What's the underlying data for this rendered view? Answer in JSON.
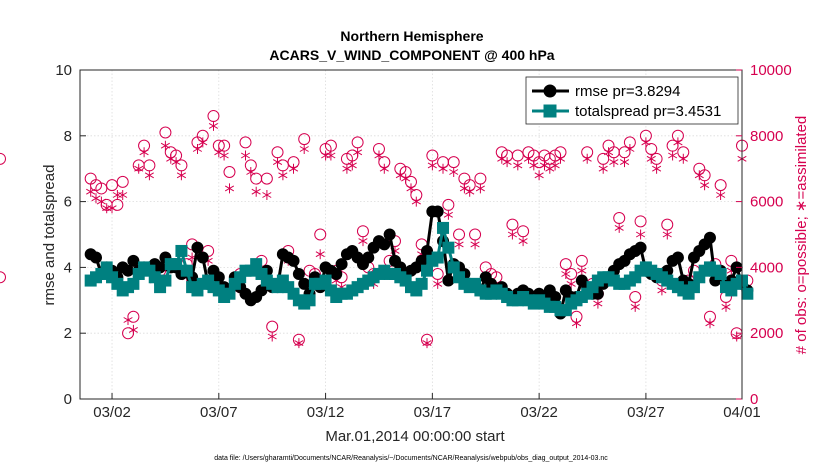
{
  "chart_data": {
    "type": "line",
    "title_line1": "Northern Hemisphere",
    "title_line2": "ACARS_V_WIND_COMPONENT @ 400 hPa",
    "ylabel": "rmse and totalspread",
    "y2label": "# of obs: o=possible; ∗=assimilated",
    "xlabel": "Mar.01,2014 00:00:00 start",
    "footnote": "data file: /Users/gharamti/Documents/NCAR/Reanalysis/~/Documents/NCAR/Reanalysis/webpub/obs_diag_output_2014-03.nc",
    "ylim": [
      0,
      10
    ],
    "y2lim": [
      0,
      10000
    ],
    "xlim": [
      0.5,
      31.5
    ],
    "yticks": [
      "0",
      "2",
      "4",
      "6",
      "8",
      "10"
    ],
    "y2ticks": [
      "0",
      "2000",
      "4000",
      "6000",
      "8000",
      "10000"
    ],
    "xticks": [
      {
        "x": 2,
        "label": "03/02"
      },
      {
        "x": 7,
        "label": "03/07"
      },
      {
        "x": 12,
        "label": "03/12"
      },
      {
        "x": 17,
        "label": "03/17"
      },
      {
        "x": 22,
        "label": "03/22"
      },
      {
        "x": 27,
        "label": "03/27"
      },
      {
        "x": 32,
        "label": "04/01"
      }
    ],
    "grid": true,
    "legend_position": "top-right",
    "series": [
      {
        "name": "rmse pr=3.8294",
        "color": "#000000",
        "marker": "circle",
        "values": [
          4.4,
          4.3,
          3.8,
          4.0,
          3.9,
          3.7,
          4.0,
          3.9,
          4.2,
          3.9,
          4.0,
          4.0,
          4.1,
          4.0,
          4.3,
          4.0,
          4.0,
          3.8,
          3.9,
          3.7,
          4.6,
          4.3,
          3.5,
          3.9,
          3.7,
          3.4,
          3.3,
          3.7,
          3.4,
          3.2,
          3.0,
          3.1,
          3.3,
          3.9,
          3.4,
          3.4,
          4.4,
          4.3,
          4.2,
          3.8,
          3.5,
          3.2,
          3.7,
          3.4,
          4.0,
          3.9,
          3.8,
          4.1,
          4.4,
          4.5,
          4.3,
          4.1,
          4.3,
          4.6,
          4.8,
          4.7,
          5.0,
          4.2,
          4.0,
          3.8,
          3.9,
          4.0,
          4.2,
          4.5,
          5.7,
          5.7,
          4.8,
          3.6,
          4.1,
          4.0,
          3.8,
          3.5,
          3.4,
          3.3,
          3.7,
          3.5,
          3.3,
          3.4,
          3.2,
          3.1,
          3.2,
          3.3,
          3.2,
          3.1,
          3.2,
          3.1,
          3.3,
          3.1,
          2.6,
          3.3,
          3.1,
          3.1,
          3.6,
          3.4,
          3.2,
          3.2,
          3.5,
          3.7,
          3.9,
          4.1,
          4.2,
          4.4,
          4.5,
          4.6,
          3.9,
          3.8,
          3.7,
          3.8,
          3.9,
          4.2,
          4.3,
          3.6,
          3.5,
          4.3,
          4.5,
          4.7,
          4.9,
          3.6,
          3.9,
          3.5,
          3.6,
          4.0,
          3.5,
          3.3
        ]
      },
      {
        "name": "totalspread pr=3.4531",
        "color": "#008080",
        "marker": "square",
        "values": [
          3.6,
          3.7,
          3.8,
          4.0,
          3.7,
          3.5,
          3.3,
          3.4,
          3.5,
          3.8,
          4.0,
          3.9,
          3.7,
          3.4,
          3.6,
          4.1,
          4.1,
          4.5,
          3.9,
          3.4,
          3.3,
          3.5,
          3.6,
          3.4,
          3.3,
          3.1,
          3.2,
          3.5,
          3.7,
          3.9,
          3.9,
          4.1,
          3.8,
          3.6,
          3.5,
          3.4,
          3.6,
          3.4,
          3.2,
          3.0,
          2.9,
          3.0,
          3.5,
          3.5,
          3.6,
          3.3,
          3.1,
          3.2,
          3.2,
          3.3,
          3.4,
          3.5,
          3.6,
          3.7,
          3.8,
          3.9,
          3.8,
          3.8,
          3.7,
          3.6,
          3.4,
          3.3,
          3.5,
          3.9,
          4.2,
          4.3,
          5.2,
          4.6,
          4.0,
          3.7,
          3.5,
          3.4,
          3.5,
          3.3,
          3.2,
          3.2,
          3.3,
          3.2,
          3.1,
          3.0,
          3.0,
          3.1,
          3.0,
          2.9,
          3.0,
          2.9,
          2.8,
          2.8,
          2.7,
          2.7,
          2.9,
          3.0,
          3.1,
          3.2,
          3.4,
          3.6,
          3.7,
          3.7,
          3.6,
          3.5,
          3.5,
          3.6,
          3.7,
          3.9,
          4.0,
          3.9,
          3.8,
          3.7,
          3.6,
          3.5,
          3.4,
          3.3,
          3.2,
          3.4,
          3.7,
          3.9,
          4.0,
          3.9,
          3.8,
          3.4,
          3.3,
          3.5,
          3.6,
          3.2
        ]
      },
      {
        "name": "possible",
        "color": "#d6004f",
        "marker": "open-circle",
        "values": [
          6700,
          6500,
          6400,
          5900,
          6500,
          5900,
          6600,
          2000,
          2500,
          7100,
          7700,
          7100,
          4000,
          3900,
          8100,
          7500,
          7400,
          7100,
          4100,
          4700,
          7800,
          8000,
          4500,
          8600,
          7700,
          7700,
          6900,
          3600,
          3800,
          7800,
          7100,
          6700,
          4200,
          6700,
          2200,
          7500,
          7100,
          4500,
          7200,
          1800,
          7900,
          3900,
          3800,
          5000,
          7600,
          7700,
          3900,
          3700,
          7300,
          7400,
          7800,
          5100,
          4000,
          3800,
          7600,
          7200,
          4200,
          4800,
          7000,
          6900,
          6600,
          6200,
          4700,
          1800,
          7400,
          3800,
          7200,
          5900,
          7200,
          5000,
          6700,
          6500,
          5000,
          6700,
          4000,
          3800,
          3700,
          7500,
          7400,
          5300,
          7400,
          5100,
          7500,
          7400,
          7200,
          7400,
          7300,
          7400,
          7500,
          4100,
          3800,
          2500,
          4200,
          7500,
          3500,
          3200,
          7300,
          7700,
          7500,
          5500,
          7500,
          7800,
          3100,
          5400,
          8000,
          7600,
          7300,
          3600,
          5300,
          7700,
          8000,
          7500,
          3600,
          3900,
          7000,
          6800,
          2500,
          4100,
          6500,
          3100,
          4200,
          2000,
          7700,
          3600,
          3700,
          7300
        ]
      },
      {
        "name": "assimilated",
        "color": "#d6004f",
        "marker": "asterisk",
        "values": [
          6300,
          6100,
          6000,
          5800,
          5800,
          6200,
          6200,
          2400,
          2100,
          7000,
          7500,
          6800,
          3600,
          3700,
          7700,
          7300,
          7200,
          6800,
          3700,
          4300,
          7600,
          7800,
          4200,
          8300,
          7500,
          7400,
          6400,
          3300,
          3400,
          7400,
          6900,
          6300,
          3800,
          6200,
          1900,
          7200,
          6800,
          4200,
          7000,
          1700,
          7600,
          3600,
          3500,
          4400,
          7400,
          7400,
          3600,
          3400,
          7000,
          7100,
          7500,
          4800,
          3700,
          3500,
          7400,
          7000,
          3900,
          4500,
          6800,
          6700,
          6400,
          6000,
          4400,
          1700,
          7100,
          3500,
          7000,
          5600,
          6900,
          4700,
          6400,
          6300,
          4700,
          6400,
          3700,
          3500,
          3400,
          7300,
          7200,
          5000,
          7100,
          4800,
          7300,
          7100,
          6800,
          7100,
          7000,
          7100,
          7300,
          3800,
          3500,
          2300,
          3900,
          7300,
          3300,
          2900,
          7000,
          7500,
          7200,
          5200,
          7200,
          7600,
          2800,
          5000,
          7800,
          7300,
          7000,
          3300,
          5000,
          7400,
          7800,
          7300,
          3300,
          3600,
          6800,
          6500,
          2300,
          3800,
          6200,
          2800,
          3900,
          1900,
          7300,
          3300,
          3400,
          7000
        ]
      }
    ]
  }
}
